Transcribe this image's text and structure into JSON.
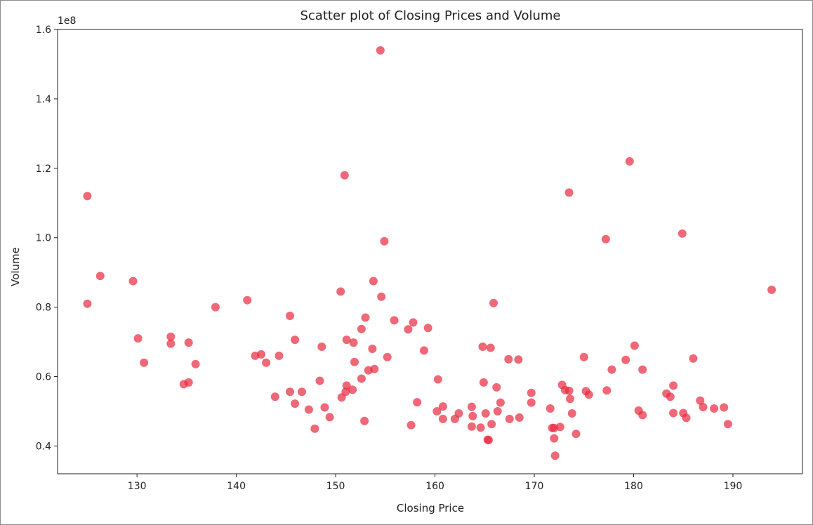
{
  "chart_data": {
    "type": "scatter",
    "title": "Scatter plot of Closing Prices and Volume",
    "xlabel": "Closing Price",
    "ylabel": "Volume",
    "y_offset_label": "1e8",
    "xlim": [
      122,
      197
    ],
    "ylim": [
      0.32,
      1.6
    ],
    "x_ticks": [
      130,
      140,
      150,
      160,
      170,
      180,
      190
    ],
    "x_tick_labels": [
      "130",
      "140",
      "150",
      "160",
      "170",
      "180",
      "190"
    ],
    "y_ticks": [
      0.4,
      0.6,
      0.8,
      1.0,
      1.2,
      1.4,
      1.6
    ],
    "y_tick_labels": [
      "0.4",
      "0.6",
      "0.8",
      "1.0",
      "1.2",
      "1.4",
      "1.6"
    ],
    "grid": false,
    "marker_color": "#e8283f",
    "marker_alpha": 0.7,
    "series": [
      {
        "points": [
          [
            125.0,
            1.12
          ],
          [
            125.0,
            0.81
          ],
          [
            126.3,
            0.89
          ],
          [
            129.6,
            0.875
          ],
          [
            130.1,
            0.71
          ],
          [
            130.7,
            0.64
          ],
          [
            133.4,
            0.715
          ],
          [
            133.4,
            0.695
          ],
          [
            134.7,
            0.578
          ],
          [
            135.2,
            0.583
          ],
          [
            135.2,
            0.698
          ],
          [
            135.9,
            0.636
          ],
          [
            137.9,
            0.8
          ],
          [
            141.1,
            0.82
          ],
          [
            141.9,
            0.66
          ],
          [
            142.5,
            0.664
          ],
          [
            143.0,
            0.64
          ],
          [
            143.9,
            0.542
          ],
          [
            144.3,
            0.66
          ],
          [
            145.4,
            0.775
          ],
          [
            145.4,
            0.556
          ],
          [
            145.9,
            0.706
          ],
          [
            145.9,
            0.522
          ],
          [
            146.6,
            0.556
          ],
          [
            147.3,
            0.505
          ],
          [
            147.9,
            0.45
          ],
          [
            148.4,
            0.588
          ],
          [
            148.6,
            0.686
          ],
          [
            148.9,
            0.511
          ],
          [
            149.4,
            0.483
          ],
          [
            150.5,
            0.845
          ],
          [
            150.6,
            0.54
          ],
          [
            150.9,
            1.18
          ],
          [
            151.0,
            0.556
          ],
          [
            151.1,
            0.574
          ],
          [
            151.1,
            0.706
          ],
          [
            151.7,
            0.562
          ],
          [
            151.8,
            0.698
          ],
          [
            151.9,
            0.642
          ],
          [
            152.6,
            0.594
          ],
          [
            152.6,
            0.737
          ],
          [
            152.9,
            0.472
          ],
          [
            153.0,
            0.77
          ],
          [
            153.3,
            0.618
          ],
          [
            153.7,
            0.68
          ],
          [
            153.8,
            0.875
          ],
          [
            153.9,
            0.622
          ],
          [
            154.5,
            1.54
          ],
          [
            154.6,
            0.83
          ],
          [
            154.9,
            0.99
          ],
          [
            155.2,
            0.656
          ],
          [
            155.9,
            0.762
          ],
          [
            157.3,
            0.736
          ],
          [
            157.6,
            0.46
          ],
          [
            157.8,
            0.756
          ],
          [
            158.2,
            0.526
          ],
          [
            158.9,
            0.675
          ],
          [
            159.3,
            0.74
          ],
          [
            160.2,
            0.5
          ],
          [
            160.3,
            0.592
          ],
          [
            160.8,
            0.514
          ],
          [
            160.8,
            0.478
          ],
          [
            162.0,
            0.478
          ],
          [
            162.4,
            0.494
          ],
          [
            163.7,
            0.513
          ],
          [
            163.7,
            0.456
          ],
          [
            163.8,
            0.486
          ],
          [
            164.6,
            0.453
          ],
          [
            164.8,
            0.686
          ],
          [
            164.9,
            0.583
          ],
          [
            165.1,
            0.494
          ],
          [
            165.3,
            0.418
          ],
          [
            165.4,
            0.417
          ],
          [
            165.6,
            0.683
          ],
          [
            165.7,
            0.463
          ],
          [
            165.9,
            0.812
          ],
          [
            166.2,
            0.569
          ],
          [
            166.3,
            0.5
          ],
          [
            166.6,
            0.525
          ],
          [
            167.4,
            0.65
          ],
          [
            167.5,
            0.478
          ],
          [
            168.4,
            0.649
          ],
          [
            168.5,
            0.482
          ],
          [
            169.7,
            0.553
          ],
          [
            169.7,
            0.525
          ],
          [
            171.6,
            0.508
          ],
          [
            171.8,
            0.452
          ],
          [
            172.0,
            0.452
          ],
          [
            172.0,
            0.422
          ],
          [
            172.1,
            0.372
          ],
          [
            172.6,
            0.455
          ],
          [
            172.8,
            0.576
          ],
          [
            173.1,
            0.561
          ],
          [
            173.5,
            1.13
          ],
          [
            173.5,
            0.559
          ],
          [
            173.6,
            0.536
          ],
          [
            173.8,
            0.494
          ],
          [
            174.2,
            0.435
          ],
          [
            175.0,
            0.656
          ],
          [
            175.2,
            0.558
          ],
          [
            175.5,
            0.548
          ],
          [
            177.2,
            0.996
          ],
          [
            177.3,
            0.56
          ],
          [
            177.8,
            0.62
          ],
          [
            179.2,
            0.648
          ],
          [
            179.6,
            1.22
          ],
          [
            180.1,
            0.689
          ],
          [
            180.5,
            0.502
          ],
          [
            180.9,
            0.62
          ],
          [
            180.9,
            0.489
          ],
          [
            183.3,
            0.551
          ],
          [
            183.7,
            0.542
          ],
          [
            184.0,
            0.574
          ],
          [
            184.0,
            0.495
          ],
          [
            184.9,
            1.012
          ],
          [
            185.0,
            0.495
          ],
          [
            185.3,
            0.481
          ],
          [
            186.0,
            0.652
          ],
          [
            186.7,
            0.531
          ],
          [
            187.0,
            0.512
          ],
          [
            188.1,
            0.508
          ],
          [
            189.1,
            0.511
          ],
          [
            189.5,
            0.463
          ],
          [
            193.9,
            0.85
          ]
        ]
      }
    ]
  }
}
